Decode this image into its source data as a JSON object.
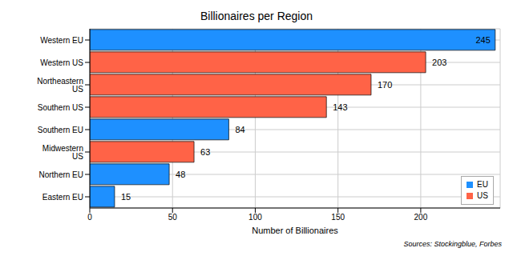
{
  "chart_data": {
    "type": "bar",
    "title": "Billionaires per Region",
    "orientation": "horizontal",
    "stacked": true,
    "x_label": "Number of Billionaires",
    "annotations": [
      "Sources: Stockingblue, Forbes"
    ],
    "categories": [
      "Western EU",
      "Western US",
      "Northeastern US",
      "Southern US",
      "Southern EU",
      "Midwestern US",
      "Northern EU",
      "Eastern EU"
    ],
    "series": [
      {
        "name": "EU",
        "color": "#1e90ff",
        "values": [
          245,
          null,
          null,
          null,
          84,
          null,
          48,
          15
        ]
      },
      {
        "name": "US",
        "color": "#ff6347",
        "values": [
          null,
          203,
          170,
          143,
          null,
          63,
          null,
          null
        ]
      }
    ],
    "xlim": [
      0,
      248
    ],
    "xticks": [
      0,
      50,
      100,
      150,
      200
    ],
    "grid": true,
    "legend": "lower right",
    "data_labels": true
  }
}
